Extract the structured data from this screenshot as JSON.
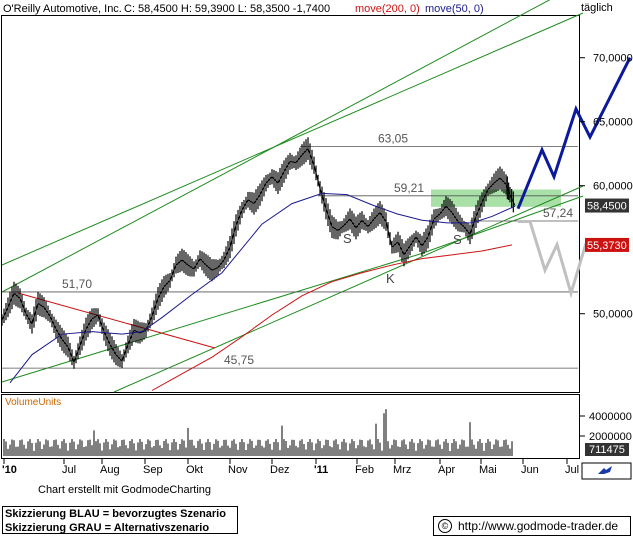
{
  "header": {
    "title": "O'Reilly Automotive, Inc.",
    "quote": "C: 58,4500 H: 59,3900 L: 58,3500 -1,7400",
    "ma200_label": "move(200, 0)",
    "ma50_label": "move(50, 0)",
    "interval": "täglich"
  },
  "colors": {
    "price": "#000000",
    "ma50": "#1a1a8c",
    "ma200": "#cc1111",
    "trend_green": "#1e8c1e",
    "trend_red": "#cc1111",
    "scenario_blue": "#0a1a9a",
    "scenario_grey": "#c0c0c0",
    "zone": "#a8e0a8"
  },
  "chart_data": {
    "type": "line",
    "title": "O'Reilly Automotive, Inc.",
    "ylim": [
      44,
      74
    ],
    "y_ticks": [
      "70,0000",
      "65,0000",
      "60,0000",
      "50,0000"
    ],
    "x_ticks": [
      "'10",
      "Jul",
      "Aug",
      "Sep",
      "Okt",
      "Nov",
      "Dez",
      "'11",
      "Feb",
      "Mrz",
      "Apr",
      "Mai",
      "Jun",
      "Jul"
    ],
    "price_tags": [
      {
        "label": "58,4500",
        "value": 58.45,
        "type": "close"
      },
      {
        "label": "55,3730",
        "value": 55.373,
        "type": "ma200"
      }
    ],
    "levels": [
      {
        "label": "63,05",
        "value": 63.05
      },
      {
        "label": "59,21",
        "value": 59.21
      },
      {
        "label": "57,24",
        "value": 57.24
      },
      {
        "label": "51,70",
        "value": 51.7
      },
      {
        "label": "45,75",
        "value": 45.75
      }
    ],
    "annotations": [
      "S",
      "S",
      "K"
    ],
    "series": [
      {
        "name": "price",
        "points": [
          [
            0,
            49.5
          ],
          [
            6,
            50.5
          ],
          [
            12,
            51.6
          ],
          [
            18,
            51.2
          ],
          [
            24,
            50.0
          ],
          [
            30,
            49.2
          ],
          [
            36,
            50.8
          ],
          [
            42,
            50.5
          ],
          [
            48,
            49.8
          ],
          [
            54,
            48.8
          ],
          [
            60,
            48.0
          ],
          [
            66,
            47.4
          ],
          [
            72,
            46.2
          ],
          [
            78,
            47.5
          ],
          [
            84,
            48.8
          ],
          [
            90,
            49.6
          ],
          [
            96,
            49.9
          ],
          [
            102,
            48.6
          ],
          [
            108,
            47.6
          ],
          [
            114,
            46.8
          ],
          [
            120,
            46.3
          ],
          [
            126,
            47.6
          ],
          [
            132,
            48.7
          ],
          [
            138,
            48.5
          ],
          [
            144,
            48.7
          ],
          [
            150,
            49.8
          ],
          [
            156,
            51.2
          ],
          [
            162,
            52.1
          ],
          [
            168,
            52.6
          ],
          [
            174,
            53.8
          ],
          [
            180,
            54.2
          ],
          [
            186,
            53.8
          ],
          [
            192,
            53.5
          ],
          [
            198,
            54.3
          ],
          [
            204,
            53.8
          ],
          [
            210,
            53.4
          ],
          [
            216,
            53.6
          ],
          [
            222,
            54.2
          ],
          [
            228,
            55.2
          ],
          [
            234,
            56.9
          ],
          [
            240,
            58.1
          ],
          [
            246,
            58.9
          ],
          [
            252,
            58.6
          ],
          [
            258,
            59.3
          ],
          [
            264,
            60.2
          ],
          [
            270,
            60.7
          ],
          [
            276,
            60.2
          ],
          [
            282,
            61.1
          ],
          [
            288,
            61.9
          ],
          [
            294,
            61.8
          ],
          [
            300,
            62.4
          ],
          [
            306,
            62.9
          ],
          [
            312,
            61.6
          ],
          [
            318,
            59.8
          ],
          [
            324,
            58.2
          ],
          [
            330,
            56.8
          ],
          [
            336,
            56.5
          ],
          [
            342,
            56.9
          ],
          [
            348,
            57.4
          ],
          [
            354,
            56.7
          ],
          [
            360,
            57.3
          ],
          [
            366,
            56.8
          ],
          [
            372,
            57.4
          ],
          [
            378,
            57.9
          ],
          [
            384,
            57.2
          ],
          [
            390,
            55.2
          ],
          [
            396,
            55.6
          ],
          [
            402,
            54.6
          ],
          [
            408,
            55.3
          ],
          [
            414,
            56.0
          ],
          [
            420,
            55.3
          ],
          [
            426,
            56.0
          ],
          [
            432,
            57.4
          ],
          [
            438,
            57.8
          ],
          [
            444,
            58.4
          ],
          [
            450,
            57.9
          ],
          [
            456,
            57.2
          ],
          [
            462,
            56.8
          ],
          [
            468,
            56.2
          ],
          [
            474,
            57.6
          ],
          [
            480,
            58.7
          ],
          [
            486,
            59.7
          ],
          [
            492,
            60.2
          ],
          [
            498,
            60.6
          ],
          [
            504,
            60.1
          ],
          [
            508,
            59.3
          ],
          [
            513,
            58.45
          ]
        ]
      },
      {
        "name": "move(50, 0)",
        "points": [
          [
            8,
            44.6
          ],
          [
            30,
            46.8
          ],
          [
            60,
            48.4
          ],
          [
            90,
            48.6
          ],
          [
            120,
            48.4
          ],
          [
            140,
            48.6
          ],
          [
            160,
            49.7
          ],
          [
            190,
            51.5
          ],
          [
            220,
            53.2
          ],
          [
            240,
            55.1
          ],
          [
            260,
            57.0
          ],
          [
            290,
            58.6
          ],
          [
            320,
            59.4
          ],
          [
            345,
            59.3
          ],
          [
            370,
            58.5
          ],
          [
            395,
            57.8
          ],
          [
            420,
            57.3
          ],
          [
            445,
            57.1
          ],
          [
            470,
            57.1
          ],
          [
            490,
            57.6
          ],
          [
            513,
            58.4
          ]
        ]
      },
      {
        "name": "move(200, 0)",
        "points": [
          [
            150,
            44.0
          ],
          [
            180,
            45.3
          ],
          [
            210,
            46.6
          ],
          [
            240,
            48.2
          ],
          [
            270,
            49.9
          ],
          [
            300,
            51.4
          ],
          [
            330,
            52.5
          ],
          [
            360,
            53.2
          ],
          [
            390,
            53.8
          ],
          [
            420,
            54.3
          ],
          [
            450,
            54.6
          ],
          [
            480,
            54.9
          ],
          [
            510,
            55.373
          ]
        ]
      }
    ],
    "scenarios": [
      {
        "name": "Skizzierung BLAU = bevorzugtes Szenario",
        "points": [
          [
            516,
            58.2
          ],
          [
            540,
            62.8
          ],
          [
            552,
            60.7
          ],
          [
            574,
            66.0
          ],
          [
            588,
            63.8
          ],
          [
            628,
            70.0
          ]
        ]
      },
      {
        "name": "Skizzierung GRAU = Alternativszenario",
        "points": [
          [
            516,
            57.2
          ],
          [
            528,
            57.2
          ],
          [
            543,
            53.4
          ],
          [
            555,
            55.4
          ],
          [
            569,
            51.6
          ],
          [
            584,
            55.5
          ]
        ]
      }
    ],
    "volume": {
      "label": "VolumeUnits",
      "ticks": [
        "4000000",
        "2000000"
      ],
      "last": "711475"
    }
  },
  "footer": {
    "credit": "Chart erstellt mit GodmodeCharting",
    "legend_blue": "Skizzierung BLAU = bevorzugtes Szenario",
    "legend_grey": "Skizzierung GRAU = Alternativszenario",
    "url": "http://www.godmode-trader.de",
    "copyright_symbol": "©"
  }
}
